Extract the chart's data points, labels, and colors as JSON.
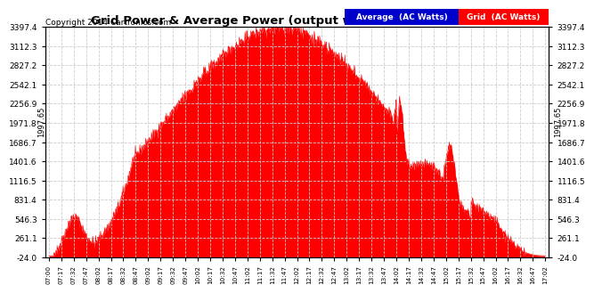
{
  "title": "Grid Power & Average Power (output watts)  Mon Feb 3 17:12",
  "copyright": "Copyright 2014 Cartronics.com",
  "yticks": [
    -24.0,
    261.1,
    546.3,
    831.4,
    1116.5,
    1401.6,
    1686.7,
    1971.8,
    2256.9,
    2542.1,
    2827.2,
    3112.3,
    3397.4
  ],
  "ymin": -24.0,
  "ymax": 3397.4,
  "average_line_y": 1997.65,
  "average_label": "1997.65",
  "grid_color": "#cccccc",
  "fill_color": "#ff0000",
  "average_line_color": "#0000ff",
  "bg_color": "#ffffff",
  "xtick_labels": [
    "07:00",
    "07:17",
    "07:32",
    "07:47",
    "08:02",
    "08:17",
    "08:32",
    "08:47",
    "09:02",
    "09:17",
    "09:32",
    "09:47",
    "10:02",
    "10:17",
    "10:32",
    "10:47",
    "11:02",
    "11:17",
    "11:32",
    "11:47",
    "12:02",
    "12:17",
    "12:32",
    "12:47",
    "13:02",
    "13:17",
    "13:32",
    "13:47",
    "14:02",
    "14:17",
    "14:32",
    "14:47",
    "15:02",
    "15:17",
    "15:32",
    "15:47",
    "16:02",
    "16:17",
    "16:32",
    "16:47",
    "17:02"
  ]
}
